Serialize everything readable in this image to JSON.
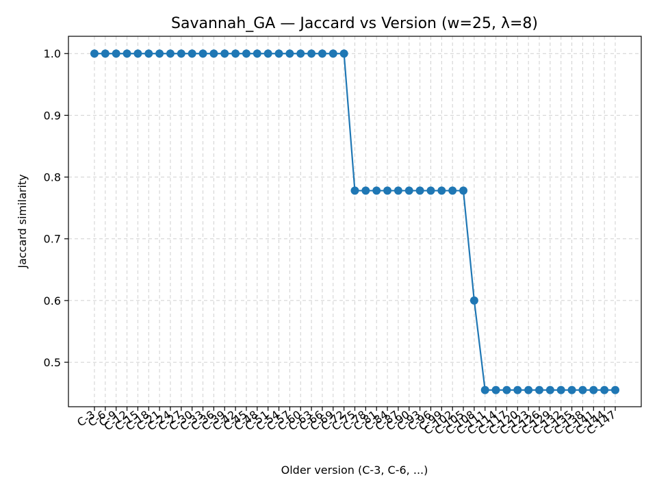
{
  "chart_data": {
    "type": "line",
    "title": "Savannah_GA — Jaccard vs Version (w=25, λ=8)",
    "xlabel": "Older version (C-3, C-6, ...)",
    "ylabel": "Jaccard similarity",
    "categories": [
      "C-3",
      "C-6",
      "C-9",
      "C-12",
      "C-15",
      "C-18",
      "C-21",
      "C-24",
      "C-27",
      "C-30",
      "C-33",
      "C-36",
      "C-39",
      "C-42",
      "C-45",
      "C-48",
      "C-51",
      "C-54",
      "C-57",
      "C-60",
      "C-63",
      "C-66",
      "C-69",
      "C-72",
      "C-75",
      "C-78",
      "C-81",
      "C-84",
      "C-87",
      "C-90",
      "C-93",
      "C-96",
      "C-99",
      "C-102",
      "C-105",
      "C-108",
      "C-111",
      "C-114",
      "C-117",
      "C-120",
      "C-123",
      "C-126",
      "C-129",
      "C-132",
      "C-135",
      "C-138",
      "C-141",
      "C-144",
      "C-147"
    ],
    "series": [
      {
        "values": [
          1.0,
          1.0,
          1.0,
          1.0,
          1.0,
          1.0,
          1.0,
          1.0,
          1.0,
          1.0,
          1.0,
          1.0,
          1.0,
          1.0,
          1.0,
          1.0,
          1.0,
          1.0,
          1.0,
          1.0,
          1.0,
          1.0,
          1.0,
          1.0,
          0.778,
          0.778,
          0.778,
          0.778,
          0.778,
          0.778,
          0.778,
          0.778,
          0.778,
          0.778,
          0.778,
          0.6,
          0.455,
          0.455,
          0.455,
          0.455,
          0.455,
          0.455,
          0.455,
          0.455,
          0.455,
          0.455,
          0.455,
          0.455,
          0.455
        ],
        "color": "#1f77b4"
      }
    ],
    "yticks": [
      "0.5",
      "0.6",
      "0.7",
      "0.8",
      "0.9",
      "1.0"
    ],
    "ylim": [
      0.428,
      1.028
    ],
    "grid": true,
    "marker": "circle"
  }
}
